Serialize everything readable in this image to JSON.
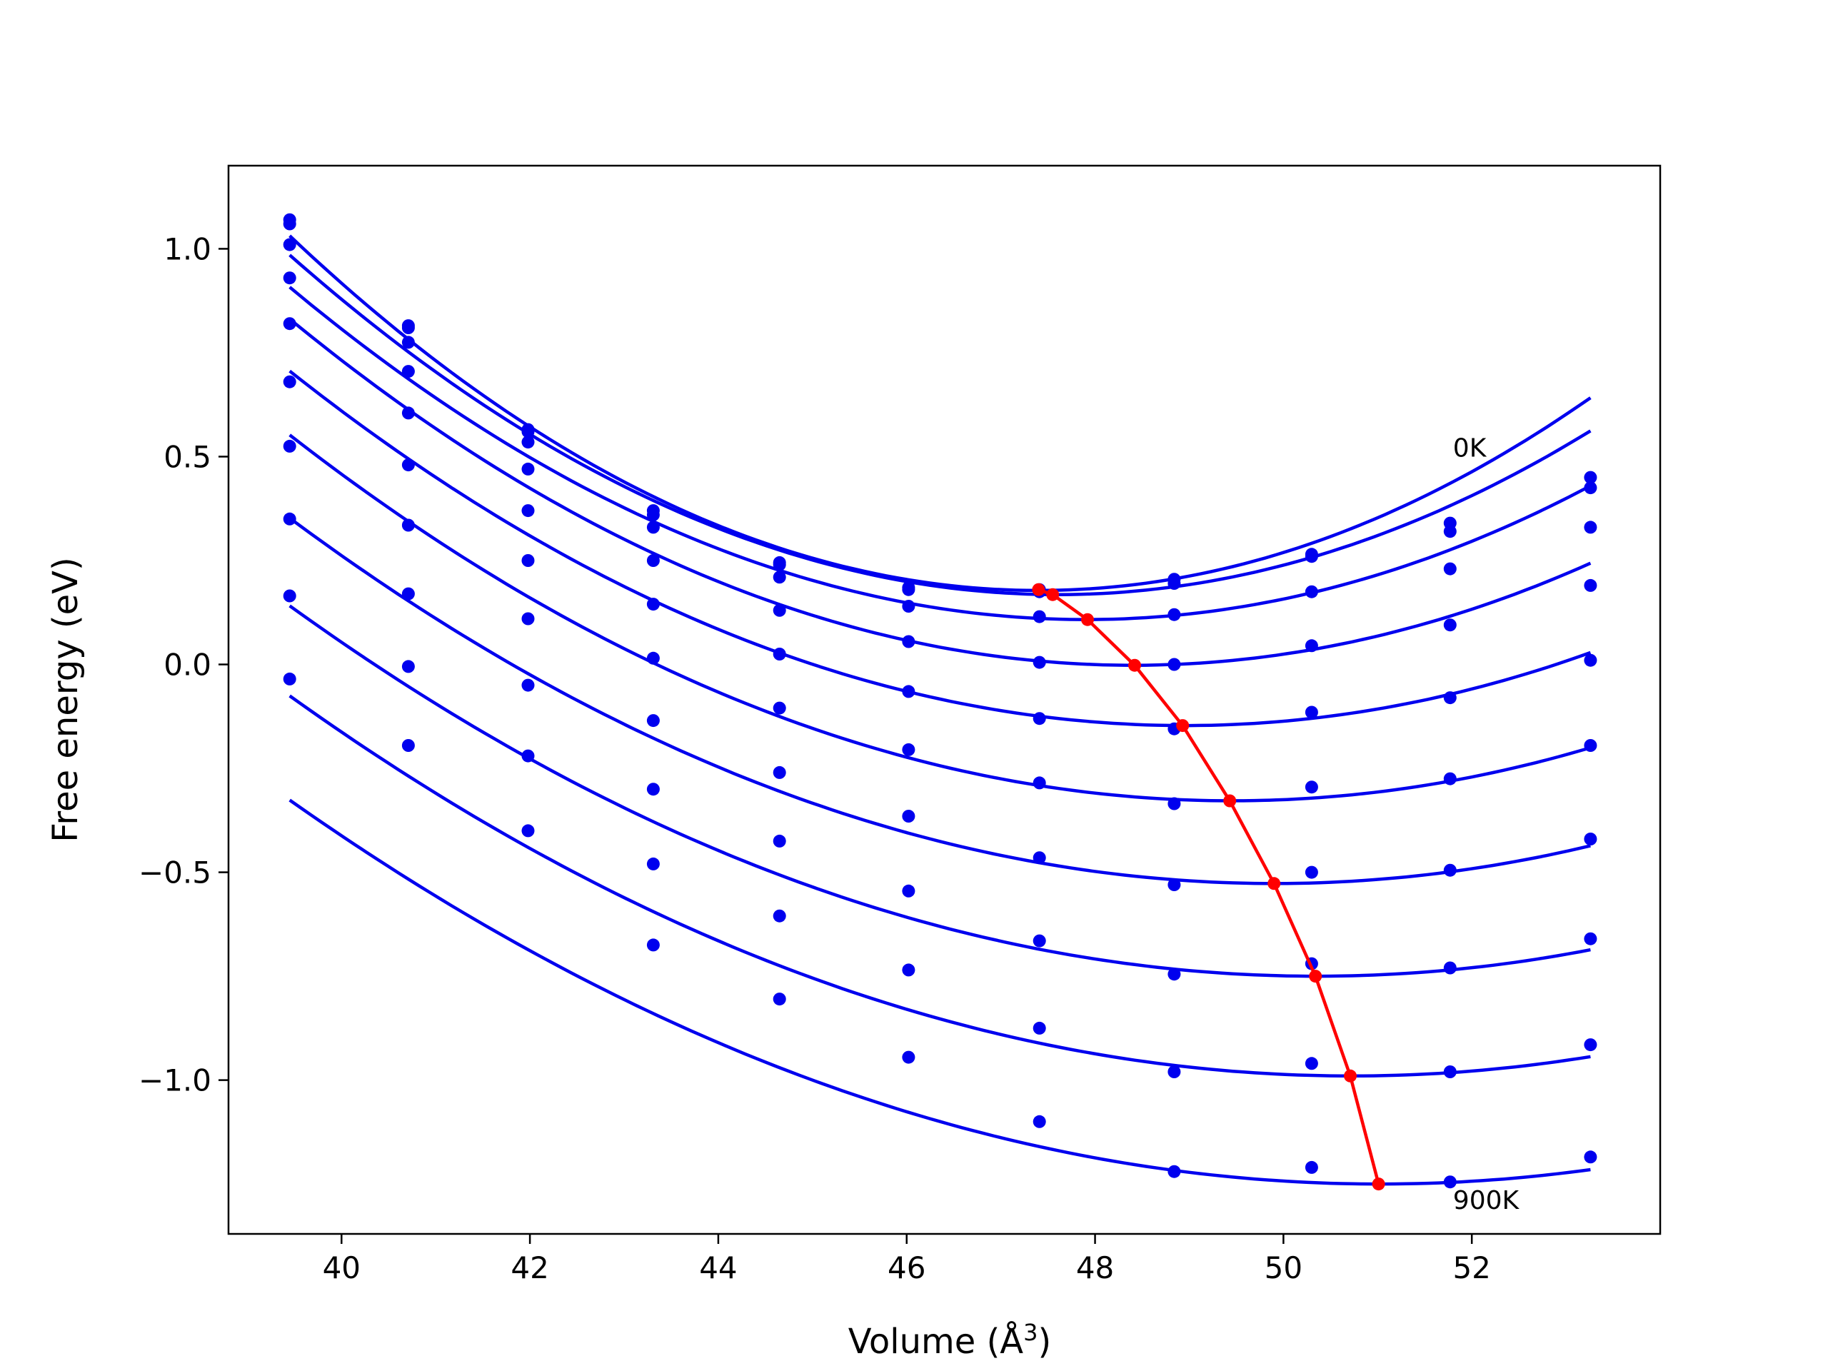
{
  "chart_data": {
    "type": "scatter",
    "title": "",
    "xlabel": "Volume (Å",
    "xlabel_sup": "3",
    "xlabel_end": ")",
    "ylabel": "Free energy (eV)",
    "xlim": [
      38.8,
      54.0
    ],
    "ylim": [
      -1.37,
      1.2
    ],
    "xticks": [
      40,
      42,
      44,
      46,
      48,
      50,
      52
    ],
    "yticks": [
      1.0,
      0.5,
      0.0,
      -0.5,
      -1.0
    ],
    "xtick_labels": [
      "40",
      "42",
      "44",
      "46",
      "48",
      "50",
      "52"
    ],
    "ytick_labels": [
      "1.0",
      "0.5",
      "0.0",
      "−0.5",
      "−1.0"
    ],
    "grid": false,
    "annotations": [
      {
        "text": "0K",
        "x": 51.8,
        "y": 0.5
      },
      {
        "text": "900K",
        "x": 51.8,
        "y": -1.31
      }
    ],
    "colors": {
      "series": "#0000ee",
      "minima": "#ff0000"
    },
    "volumes": [
      39.45,
      40.71,
      41.98,
      43.31,
      44.65,
      46.02,
      47.41,
      48.84,
      50.3,
      51.77,
      53.26
    ],
    "series": [
      {
        "values": [
          1.06,
          0.81,
          0.565,
          0.37,
          0.24,
          0.185,
          0.18,
          0.205,
          0.265,
          0.34,
          0.45
        ]
      },
      {
        "values": [
          1.07,
          0.815,
          0.56,
          0.36,
          0.245,
          0.18,
          0.175,
          0.195,
          0.26,
          0.32,
          0.425
        ]
      },
      {
        "values": [
          1.01,
          0.775,
          0.535,
          0.33,
          0.21,
          0.14,
          0.115,
          0.12,
          0.175,
          0.23,
          0.33
        ]
      },
      {
        "values": [
          0.93,
          0.705,
          0.47,
          0.25,
          0.13,
          0.055,
          0.005,
          0.0,
          0.045,
          0.095,
          0.19
        ]
      },
      {
        "values": [
          0.82,
          0.605,
          0.37,
          0.145,
          0.025,
          -0.065,
          -0.13,
          -0.155,
          -0.115,
          -0.08,
          0.01
        ]
      },
      {
        "values": [
          0.68,
          0.48,
          0.25,
          0.015,
          -0.105,
          -0.205,
          -0.285,
          -0.335,
          -0.295,
          -0.275,
          -0.195
        ]
      },
      {
        "values": [
          0.525,
          0.335,
          0.11,
          -0.135,
          -0.26,
          -0.365,
          -0.465,
          -0.53,
          -0.5,
          -0.495,
          -0.42
        ]
      },
      {
        "values": [
          0.35,
          0.17,
          -0.05,
          -0.3,
          -0.425,
          -0.545,
          -0.665,
          -0.745,
          -0.72,
          -0.73,
          -0.66
        ]
      },
      {
        "values": [
          0.165,
          -0.005,
          -0.22,
          -0.48,
          -0.605,
          -0.735,
          -0.875,
          -0.98,
          -0.96,
          -0.98,
          -0.915
        ]
      },
      {
        "values": [
          -0.035,
          -0.195,
          -0.4,
          -0.675,
          -0.805,
          -0.945,
          -1.1,
          -1.22,
          -1.21,
          -1.245,
          -1.185
        ]
      }
    ],
    "fits": [
      {
        "x0": 47.4,
        "y0": 0.178,
        "a": 0.0135,
        "b": 0.0
      },
      {
        "x0": 47.6,
        "y0": 0.168,
        "a": 0.0123,
        "b": 0.0
      },
      {
        "x0": 47.9,
        "y0": 0.108,
        "a": 0.0112,
        "b": 0.0
      },
      {
        "x0": 48.4,
        "y0": -0.002,
        "a": 0.0104,
        "b": 0.0
      },
      {
        "x0": 48.95,
        "y0": -0.147,
        "a": 0.00945,
        "b": 0.0
      },
      {
        "x0": 49.45,
        "y0": -0.328,
        "a": 0.0088,
        "b": 0.0
      },
      {
        "x0": 49.9,
        "y0": -0.527,
        "a": 0.00805,
        "b": 0.0
      },
      {
        "x0": 50.35,
        "y0": -0.75,
        "a": 0.0075,
        "b": 0.0
      },
      {
        "x0": 50.72,
        "y0": -0.99,
        "a": 0.0072,
        "b": 0.0
      },
      {
        "x0": 51.02,
        "y0": -1.25,
        "a": 0.0069,
        "b": 0.0
      }
    ],
    "minima": {
      "x": [
        47.4,
        47.55,
        47.92,
        48.42,
        48.93,
        49.43,
        49.9,
        50.34,
        50.71,
        51.01
      ],
      "y": [
        0.18,
        0.168,
        0.108,
        -0.002,
        -0.147,
        -0.328,
        -0.527,
        -0.75,
        -0.99,
        -1.25
      ]
    }
  }
}
